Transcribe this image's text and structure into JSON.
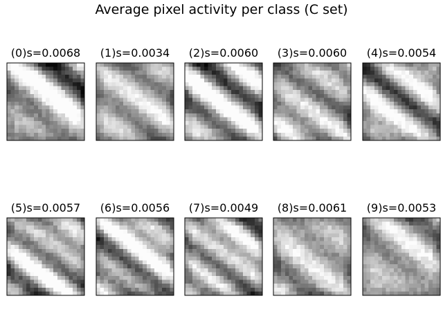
{
  "title": "Average pixel activity per class (C set)",
  "chart_data": {
    "type": "heatmap",
    "colormap": "gray",
    "grid": false,
    "layout": {
      "rows": 2,
      "cols": 5
    },
    "panels": [
      {
        "label": "(0)s=0.0068",
        "class": 0,
        "s": 0.0068
      },
      {
        "label": "(1)s=0.0034",
        "class": 1,
        "s": 0.0034
      },
      {
        "label": "(2)s=0.0060",
        "class": 2,
        "s": 0.006
      },
      {
        "label": "(3)s=0.0060",
        "class": 3,
        "s": 0.006
      },
      {
        "label": "(4)s=0.0054",
        "class": 4,
        "s": 0.0054
      },
      {
        "label": "(5)s=0.0057",
        "class": 5,
        "s": 0.0057
      },
      {
        "label": "(6)s=0.0056",
        "class": 6,
        "s": 0.0056
      },
      {
        "label": "(7)s=0.0049",
        "class": 7,
        "s": 0.0049
      },
      {
        "label": "(8)s=0.0061",
        "class": 8,
        "s": 0.0061
      },
      {
        "label": "(9)s=0.0053",
        "class": 9,
        "s": 0.0053
      }
    ]
  }
}
